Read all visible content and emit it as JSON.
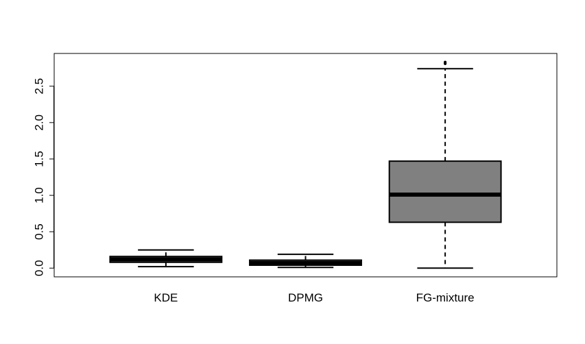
{
  "chart_data": {
    "type": "boxplot",
    "title": "",
    "xlabel": "",
    "ylabel": "",
    "ylim": [
      -0.12,
      2.95
    ],
    "yticks": [
      0.0,
      0.5,
      1.0,
      1.5,
      2.0,
      2.5
    ],
    "ytick_labels": [
      "0.0",
      "0.5",
      "1.0",
      "1.5",
      "2.0",
      "2.5"
    ],
    "categories": [
      "KDE",
      "DPMG",
      "FG-mixture"
    ],
    "boxes": [
      {
        "min": 0.02,
        "q1": 0.08,
        "median": 0.12,
        "q3": 0.16,
        "max": 0.25,
        "outliers": [],
        "color": "#808080"
      },
      {
        "min": 0.01,
        "q1": 0.04,
        "median": 0.07,
        "q3": 0.11,
        "max": 0.19,
        "outliers": [],
        "color": "#808080"
      },
      {
        "min": 0.0,
        "q1": 0.63,
        "median": 1.01,
        "q3": 1.47,
        "max": 2.74,
        "outliers": [
          2.81,
          2.83
        ],
        "color": "#808080"
      }
    ],
    "grid": false,
    "legend": "none"
  }
}
